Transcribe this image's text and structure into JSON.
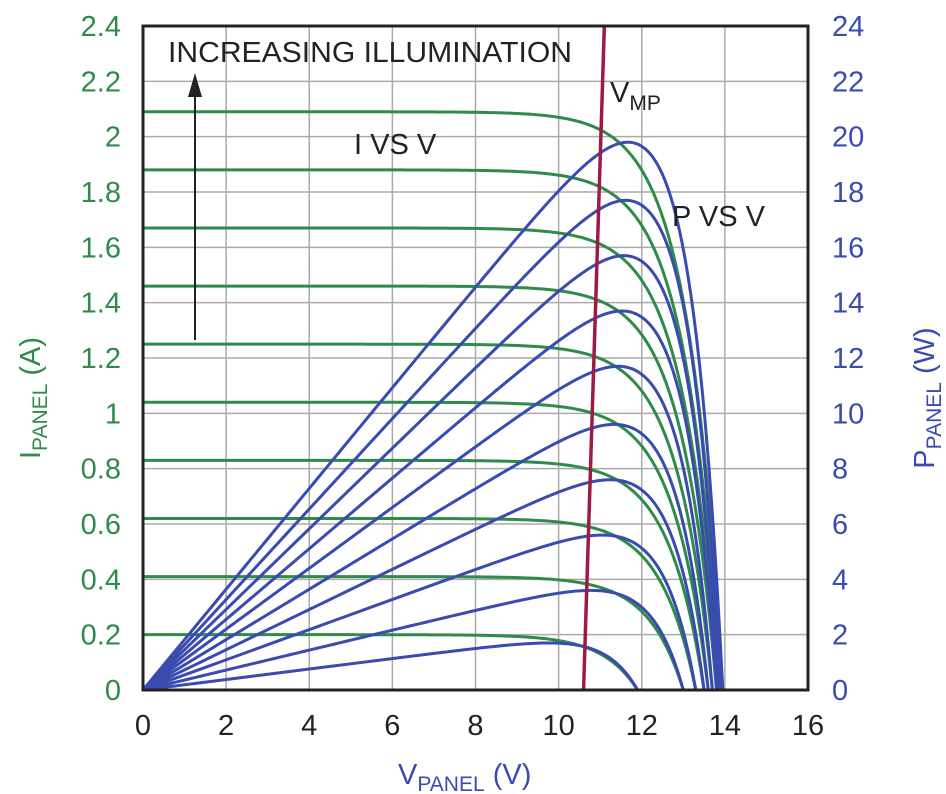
{
  "colors": {
    "current": "#2e8b4a",
    "power": "#3a4bb0",
    "vmp": "#9c1b45",
    "frame": "#222222",
    "grid": "#aaaaaa",
    "annotation": "#222222"
  },
  "chart_data": {
    "type": "line",
    "x_axis": {
      "label_main": "V",
      "label_sub": "PANEL",
      "label_unit": " (V)",
      "range": [
        0,
        16
      ],
      "ticks": [
        "0",
        "2",
        "4",
        "6",
        "8",
        "10",
        "12",
        "14",
        "16"
      ]
    },
    "y_axis_left": {
      "label_main": "I",
      "label_sub": "PANEL",
      "label_unit": " (A)",
      "range": [
        0,
        2.4
      ],
      "ticks": [
        "0",
        "0.2",
        "0.4",
        "0.6",
        "0.8",
        "1",
        "1.2",
        "1.4",
        "1.6",
        "1.8",
        "2",
        "2.2",
        "2.4"
      ]
    },
    "y_axis_right": {
      "label_main": "P",
      "label_sub": "PANEL",
      "label_unit": " (W)",
      "range": [
        0,
        24
      ],
      "ticks": [
        "0",
        "2",
        "4",
        "6",
        "8",
        "10",
        "12",
        "14",
        "16",
        "18",
        "20",
        "22",
        "24"
      ]
    },
    "grid": true,
    "annotations": {
      "increasing": "INCREASING ILLUMINATION",
      "i_vs_v": "I VS V",
      "p_vs_v": "P VS V",
      "vmp_main": "V",
      "vmp_sub": "MP"
    },
    "families": {
      "i_vs_v": {
        "axis": "left",
        "short_circuit_current": [
          0.2,
          0.41,
          0.62,
          0.83,
          1.04,
          1.25,
          1.46,
          1.67,
          1.88,
          2.09
        ],
        "open_circuit_voltage": [
          11.9,
          13.0,
          13.3,
          13.5,
          13.6,
          13.7,
          13.8,
          13.85,
          13.9,
          13.95
        ]
      },
      "p_vs_v": {
        "axis": "right",
        "peak_power_w": [
          1.7,
          3.6,
          5.6,
          7.6,
          9.6,
          11.7,
          13.7,
          15.7,
          17.7,
          19.8
        ],
        "peak_voltage": [
          9.7,
          10.4,
          10.7,
          10.8,
          10.9,
          11.0,
          11.1,
          11.1,
          11.2,
          11.2
        ]
      },
      "vmp_line": {
        "x": [
          10.6,
          11.1
        ],
        "y": [
          0,
          2.4
        ]
      }
    }
  }
}
